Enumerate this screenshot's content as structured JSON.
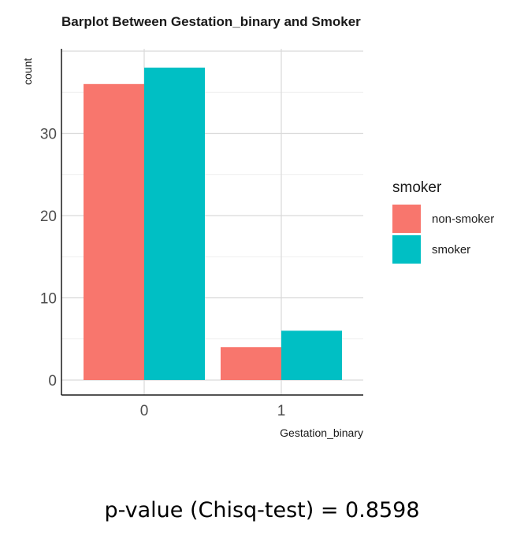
{
  "chart_data": {
    "type": "bar",
    "title": "Barplot Between Gestation_binary and Smoker",
    "xlabel": "Gestation_binary",
    "ylabel": "count",
    "categories": [
      "0",
      "1"
    ],
    "series": [
      {
        "name": "non-smoker",
        "values": [
          36,
          4
        ],
        "color": "#F8766D"
      },
      {
        "name": "smoker",
        "values": [
          38,
          6
        ],
        "color": "#00BFC4"
      }
    ],
    "ylim": [
      0,
      40
    ],
    "yticks": [
      0,
      10,
      20,
      30
    ],
    "grid": true,
    "legend": {
      "title": "smoker",
      "position": "right"
    }
  },
  "footer": {
    "pvalue_text": "p-value (Chisq-test) = 0.8598"
  }
}
